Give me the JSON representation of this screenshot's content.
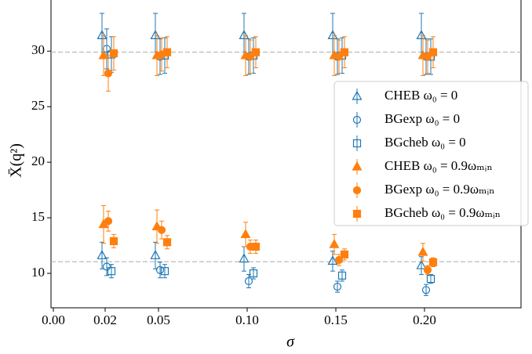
{
  "chart_data": {
    "type": "errorbar-scatter",
    "xlabel": "σ",
    "ylabel": "X̄(q²)",
    "categories": [
      "0.00",
      "0.02",
      "0.05",
      "0.10",
      "0.15",
      "0.20"
    ],
    "ylim": [
      6.9,
      34.6
    ],
    "yticks": [
      10,
      15,
      20,
      25,
      30
    ],
    "hlines": [
      29.9,
      11.05
    ],
    "legend": "right",
    "series": [
      {
        "name": "CHEB ω₀ = 0",
        "color": "#1f77b4",
        "marker": "triangle",
        "filled": false,
        "values_upper": [
          null,
          31.4,
          31.4,
          31.4,
          31.4,
          31.4
        ],
        "errors_upper": [
          null,
          2.0,
          2.0,
          2.0,
          2.0,
          2.0
        ],
        "values_lower": [
          null,
          11.6,
          11.6,
          11.3,
          11.1,
          10.7
        ],
        "errors_lower": [
          null,
          1.2,
          1.2,
          1.1,
          0.9,
          0.8
        ]
      },
      {
        "name": "BGexp ω₀ = 0",
        "color": "#1f77b4",
        "marker": "circle",
        "filled": false,
        "values_upper": [
          null,
          30.2,
          29.5,
          29.5,
          29.5,
          29.5
        ],
        "errors_upper": [
          null,
          1.8,
          1.6,
          1.6,
          1.6,
          1.6
        ],
        "values_lower": [
          null,
          10.6,
          10.3,
          9.3,
          8.8,
          8.5
        ],
        "errors_lower": [
          null,
          0.8,
          0.7,
          0.6,
          0.5,
          0.5
        ]
      },
      {
        "name": "BGcheb ω₀ = 0",
        "color": "#1f77b4",
        "marker": "square",
        "filled": false,
        "values_upper": [
          null,
          29.7,
          29.6,
          29.6,
          29.6,
          29.5
        ],
        "errors_upper": [
          null,
          1.6,
          1.6,
          1.6,
          1.6,
          1.6
        ],
        "values_lower": [
          null,
          10.2,
          10.2,
          10.0,
          9.8,
          9.5
        ],
        "errors_lower": [
          null,
          0.6,
          0.6,
          0.5,
          0.5,
          0.4
        ]
      },
      {
        "name": "CHEB ω₀ = 0.9ωₘᵢₙ",
        "color": "#ff7f0e",
        "marker": "triangle",
        "filled": true,
        "values_upper": [
          null,
          29.6,
          29.6,
          29.6,
          29.6,
          29.6
        ],
        "errors_upper": [
          null,
          1.8,
          1.8,
          1.8,
          1.8,
          1.8
        ],
        "values_lower": [
          null,
          14.4,
          14.2,
          13.5,
          12.6,
          11.9
        ],
        "errors_lower": [
          null,
          1.7,
          1.5,
          1.1,
          0.9,
          0.8
        ]
      },
      {
        "name": "BGexp ω₀ = 0.9ωₘᵢₙ",
        "color": "#ff7f0e",
        "marker": "circle",
        "filled": true,
        "values_upper": [
          null,
          28.0,
          29.7,
          29.5,
          29.5,
          29.5
        ],
        "errors_upper": [
          null,
          1.6,
          1.5,
          1.5,
          1.5,
          1.5
        ],
        "values_lower": [
          null,
          14.7,
          13.9,
          12.4,
          11.2,
          10.3
        ],
        "errors_lower": [
          null,
          0.9,
          0.8,
          0.6,
          0.5,
          0.4
        ]
      },
      {
        "name": "BGcheb ω₀ = 0.9ωₘᵢₙ",
        "color": "#ff7f0e",
        "marker": "square",
        "filled": true,
        "values_upper": [
          null,
          29.8,
          29.9,
          29.9,
          29.9,
          29.9
        ],
        "errors_upper": [
          null,
          1.5,
          1.4,
          1.4,
          1.4,
          1.4
        ],
        "values_lower": [
          null,
          12.9,
          12.8,
          12.4,
          11.7,
          11.0
        ],
        "errors_lower": [
          null,
          0.6,
          0.6,
          0.6,
          0.5,
          0.4
        ]
      }
    ]
  }
}
